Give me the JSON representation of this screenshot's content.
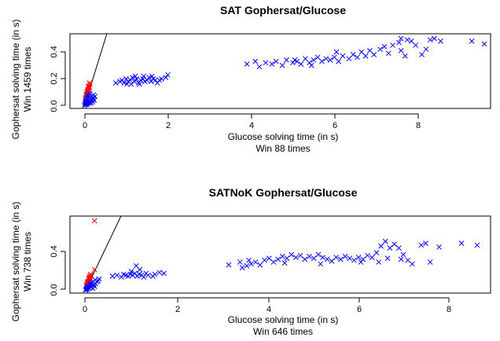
{
  "charts": [
    {
      "title": "SAT Gophersat/Glucose",
      "xlabel": "Glucose solving time (in s)",
      "xsub": "Win  88 times",
      "ylabel": "Gophersat solving time (in s)",
      "ysub": "Win  1459 times",
      "x_ticks": [
        "0",
        "2",
        "4",
        "6",
        "8"
      ],
      "y_ticks": [
        "0.0",
        "0.2",
        "0.4"
      ]
    },
    {
      "title": "SATNoK Gophersat/Glucose",
      "xlabel": "Glucose solving time (in s)",
      "xsub": "Win  646 times",
      "ylabel": "Gophersat solving time (in s)",
      "ysub": "Win  738 times",
      "x_ticks": [
        "0",
        "2",
        "4",
        "6",
        "8"
      ],
      "y_ticks": [
        "0.0",
        "0.4"
      ]
    }
  ],
  "chart_data": [
    {
      "type": "scatter",
      "title": "SAT Gophersat/Glucose",
      "xlabel": "Glucose solving time (in s)",
      "ylabel": "Gophersat solving time (in s)",
      "xlim": [
        -0.35,
        9.75
      ],
      "ylim": [
        -0.02,
        0.535
      ],
      "x_ticks": [
        0,
        2,
        4,
        6,
        8
      ],
      "y_ticks": [
        0.0,
        0.2,
        0.4
      ],
      "reference_line": "y = x",
      "marker": "x",
      "colors": {
        "gophersat_slower": "#ff0000",
        "gophersat_faster": "#0000ff"
      },
      "series": [
        {
          "color": "#ff0000",
          "points": [
            [
              0.02,
              0.05
            ],
            [
              0.04,
              0.08
            ],
            [
              0.06,
              0.1
            ],
            [
              0.08,
              0.12
            ],
            [
              0.09,
              0.14
            ],
            [
              0.1,
              0.15
            ],
            [
              0.12,
              0.17
            ],
            [
              0.05,
              0.09
            ],
            [
              0.07,
              0.11
            ],
            [
              0.03,
              0.06
            ],
            [
              0.11,
              0.13
            ],
            [
              0.06,
              0.08
            ],
            [
              0.08,
              0.1
            ],
            [
              0.1,
              0.12
            ],
            [
              0.04,
              0.05
            ],
            [
              0.13,
              0.16
            ],
            [
              0.09,
              0.11
            ],
            [
              0.05,
              0.07
            ],
            [
              0.12,
              0.14
            ],
            [
              0.02,
              0.03
            ]
          ]
        },
        {
          "color": "#0000ff",
          "points": [
            [
              0.0,
              0.0
            ],
            [
              0.01,
              0.01
            ],
            [
              0.02,
              0.02
            ],
            [
              0.03,
              0.01
            ],
            [
              0.05,
              0.02
            ],
            [
              0.06,
              0.03
            ],
            [
              0.08,
              0.02
            ],
            [
              0.1,
              0.03
            ],
            [
              0.12,
              0.04
            ],
            [
              0.15,
              0.05
            ],
            [
              0.18,
              0.04
            ],
            [
              0.2,
              0.06
            ],
            [
              0.22,
              0.05
            ],
            [
              0.25,
              0.07
            ],
            [
              0.03,
              0.04
            ],
            [
              0.07,
              0.05
            ],
            [
              0.11,
              0.06
            ],
            [
              0.14,
              0.03
            ],
            [
              0.17,
              0.07
            ],
            [
              0.21,
              0.08
            ],
            [
              0.09,
              0.07
            ],
            [
              0.04,
              0.06
            ],
            [
              0.13,
              0.09
            ],
            [
              0.16,
              0.02
            ],
            [
              0.19,
              0.03
            ],
            [
              0.23,
              0.04
            ],
            [
              0.06,
              0.01
            ],
            [
              0.02,
              0.03
            ],
            [
              0.08,
              0.08
            ],
            [
              0.12,
              0.02
            ],
            [
              0.75,
              0.17
            ],
            [
              0.85,
              0.18
            ],
            [
              0.9,
              0.19
            ],
            [
              0.95,
              0.17
            ],
            [
              1.0,
              0.2
            ],
            [
              1.05,
              0.18
            ],
            [
              1.1,
              0.19
            ],
            [
              1.15,
              0.21
            ],
            [
              1.2,
              0.18
            ],
            [
              1.25,
              0.2
            ],
            [
              1.3,
              0.17
            ],
            [
              1.35,
              0.19
            ],
            [
              1.4,
              0.2
            ],
            [
              1.45,
              0.18
            ],
            [
              1.5,
              0.19
            ],
            [
              1.55,
              0.21
            ],
            [
              1.6,
              0.18
            ],
            [
              1.65,
              0.2
            ],
            [
              1.7,
              0.19
            ],
            [
              1.75,
              0.17
            ],
            [
              1.8,
              0.19
            ],
            [
              1.85,
              0.2
            ],
            [
              1.95,
              0.21
            ],
            [
              2.0,
              0.23
            ],
            [
              1.12,
              0.16
            ],
            [
              1.22,
              0.22
            ],
            [
              1.32,
              0.16
            ],
            [
              1.42,
              0.22
            ],
            [
              1.02,
              0.16
            ],
            [
              1.62,
              0.22
            ],
            [
              3.9,
              0.31
            ],
            [
              4.1,
              0.33
            ],
            [
              4.2,
              0.29
            ],
            [
              4.35,
              0.32
            ],
            [
              4.5,
              0.31
            ],
            [
              4.6,
              0.33
            ],
            [
              4.75,
              0.3
            ],
            [
              4.85,
              0.34
            ],
            [
              5.0,
              0.32
            ],
            [
              5.1,
              0.33
            ],
            [
              5.2,
              0.31
            ],
            [
              5.3,
              0.35
            ],
            [
              5.4,
              0.32
            ],
            [
              5.5,
              0.34
            ],
            [
              5.6,
              0.36
            ],
            [
              5.7,
              0.33
            ],
            [
              5.8,
              0.35
            ],
            [
              5.9,
              0.34
            ],
            [
              6.0,
              0.36
            ],
            [
              6.1,
              0.33
            ],
            [
              6.2,
              0.37
            ],
            [
              6.35,
              0.35
            ],
            [
              6.45,
              0.38
            ],
            [
              6.55,
              0.36
            ],
            [
              6.65,
              0.4
            ],
            [
              6.75,
              0.37
            ],
            [
              6.85,
              0.41
            ],
            [
              6.95,
              0.38
            ],
            [
              7.1,
              0.42
            ],
            [
              7.2,
              0.44
            ],
            [
              7.3,
              0.39
            ],
            [
              7.4,
              0.45
            ],
            [
              7.55,
              0.47
            ],
            [
              7.6,
              0.5
            ],
            [
              7.75,
              0.49
            ],
            [
              7.85,
              0.48
            ],
            [
              7.95,
              0.45
            ],
            [
              8.1,
              0.38
            ],
            [
              8.2,
              0.42
            ],
            [
              8.3,
              0.49
            ],
            [
              8.4,
              0.5
            ],
            [
              8.55,
              0.48
            ],
            [
              9.3,
              0.48
            ],
            [
              9.6,
              0.46
            ],
            [
              7.6,
              0.41
            ],
            [
              7.7,
              0.37
            ],
            [
              5.05,
              0.34
            ],
            [
              5.45,
              0.3
            ],
            [
              6.05,
              0.4
            ]
          ]
        }
      ]
    },
    {
      "type": "scatter",
      "title": "SATNoK Gophersat/Glucose",
      "xlabel": "Glucose solving time (in s)",
      "ylabel": "Gophersat solving time (in s)",
      "xlim": [
        -0.35,
        9.05
      ],
      "ylim": [
        -0.03,
        0.79
      ],
      "x_ticks": [
        0,
        2,
        4,
        6,
        8
      ],
      "y_ticks": [
        0.0,
        0.4
      ],
      "reference_line": "y = x",
      "marker": "x",
      "colors": {
        "gophersat_slower": "#ff0000",
        "gophersat_faster": "#0000ff"
      },
      "series": [
        {
          "color": "#ff0000",
          "points": [
            [
              0.2,
              0.74
            ],
            [
              0.2,
              0.22
            ],
            [
              0.02,
              0.06
            ],
            [
              0.04,
              0.08
            ],
            [
              0.06,
              0.1
            ],
            [
              0.08,
              0.13
            ],
            [
              0.1,
              0.15
            ],
            [
              0.11,
              0.17
            ],
            [
              0.05,
              0.09
            ],
            [
              0.07,
              0.12
            ],
            [
              0.03,
              0.05
            ],
            [
              0.09,
              0.14
            ],
            [
              0.12,
              0.16
            ],
            [
              0.06,
              0.08
            ],
            [
              0.04,
              0.07
            ],
            [
              0.1,
              0.13
            ],
            [
              0.08,
              0.11
            ],
            [
              0.02,
              0.04
            ]
          ]
        },
        {
          "color": "#0000ff",
          "points": [
            [
              0.0,
              0.0
            ],
            [
              0.01,
              0.01
            ],
            [
              0.02,
              0.02
            ],
            [
              0.04,
              0.01
            ],
            [
              0.06,
              0.03
            ],
            [
              0.08,
              0.02
            ],
            [
              0.1,
              0.04
            ],
            [
              0.12,
              0.03
            ],
            [
              0.15,
              0.05
            ],
            [
              0.18,
              0.06
            ],
            [
              0.2,
              0.04
            ],
            [
              0.22,
              0.07
            ],
            [
              0.25,
              0.09
            ],
            [
              0.28,
              0.1
            ],
            [
              0.3,
              0.12
            ],
            [
              0.05,
              0.05
            ],
            [
              0.09,
              0.07
            ],
            [
              0.13,
              0.08
            ],
            [
              0.17,
              0.09
            ],
            [
              0.21,
              0.11
            ],
            [
              0.03,
              0.03
            ],
            [
              0.11,
              0.06
            ],
            [
              0.16,
              0.02
            ],
            [
              0.6,
              0.15
            ],
            [
              0.7,
              0.16
            ],
            [
              0.8,
              0.14
            ],
            [
              0.85,
              0.17
            ],
            [
              0.9,
              0.16
            ],
            [
              0.95,
              0.15
            ],
            [
              1.0,
              0.17
            ],
            [
              1.05,
              0.16
            ],
            [
              1.1,
              0.18
            ],
            [
              1.15,
              0.15
            ],
            [
              1.2,
              0.17
            ],
            [
              1.25,
              0.16
            ],
            [
              1.3,
              0.14
            ],
            [
              1.35,
              0.18
            ],
            [
              1.4,
              0.16
            ],
            [
              1.5,
              0.15
            ],
            [
              1.55,
              0.17
            ],
            [
              1.65,
              0.19
            ],
            [
              1.75,
              0.18
            ],
            [
              1.13,
              0.26
            ],
            [
              1.21,
              0.22
            ],
            [
              1.02,
              0.2
            ],
            [
              3.2,
              0.27
            ],
            [
              3.45,
              0.3
            ],
            [
              3.5,
              0.24
            ],
            [
              3.6,
              0.26
            ],
            [
              3.7,
              0.28
            ],
            [
              3.8,
              0.3
            ],
            [
              3.9,
              0.27
            ],
            [
              4.0,
              0.32
            ],
            [
              4.1,
              0.34
            ],
            [
              4.2,
              0.3
            ],
            [
              4.3,
              0.33
            ],
            [
              4.4,
              0.36
            ],
            [
              4.5,
              0.34
            ],
            [
              4.6,
              0.38
            ],
            [
              4.7,
              0.35
            ],
            [
              4.8,
              0.37
            ],
            [
              4.9,
              0.33
            ],
            [
              5.0,
              0.36
            ],
            [
              5.1,
              0.34
            ],
            [
              5.2,
              0.38
            ],
            [
              5.3,
              0.35
            ],
            [
              5.4,
              0.33
            ],
            [
              5.5,
              0.31
            ],
            [
              5.6,
              0.35
            ],
            [
              5.7,
              0.33
            ],
            [
              5.8,
              0.36
            ],
            [
              5.9,
              0.34
            ],
            [
              6.0,
              0.32
            ],
            [
              6.1,
              0.35
            ],
            [
              6.2,
              0.33
            ],
            [
              6.3,
              0.37
            ],
            [
              6.4,
              0.35
            ],
            [
              6.5,
              0.4
            ],
            [
              6.6,
              0.47
            ],
            [
              6.7,
              0.52
            ],
            [
              6.8,
              0.45
            ],
            [
              6.9,
              0.49
            ],
            [
              7.0,
              0.45
            ],
            [
              7.1,
              0.38
            ],
            [
              7.2,
              0.32
            ],
            [
              7.3,
              0.28
            ],
            [
              7.5,
              0.48
            ],
            [
              7.6,
              0.5
            ],
            [
              7.7,
              0.3
            ],
            [
              7.9,
              0.46
            ],
            [
              8.4,
              0.5
            ],
            [
              8.75,
              0.48
            ],
            [
              6.15,
              0.3
            ],
            [
              5.25,
              0.28
            ],
            [
              4.45,
              0.29
            ],
            [
              3.65,
              0.32
            ],
            [
              7.05,
              0.33
            ],
            [
              6.75,
              0.34
            ],
            [
              6.55,
              0.3
            ]
          ]
        }
      ]
    }
  ]
}
